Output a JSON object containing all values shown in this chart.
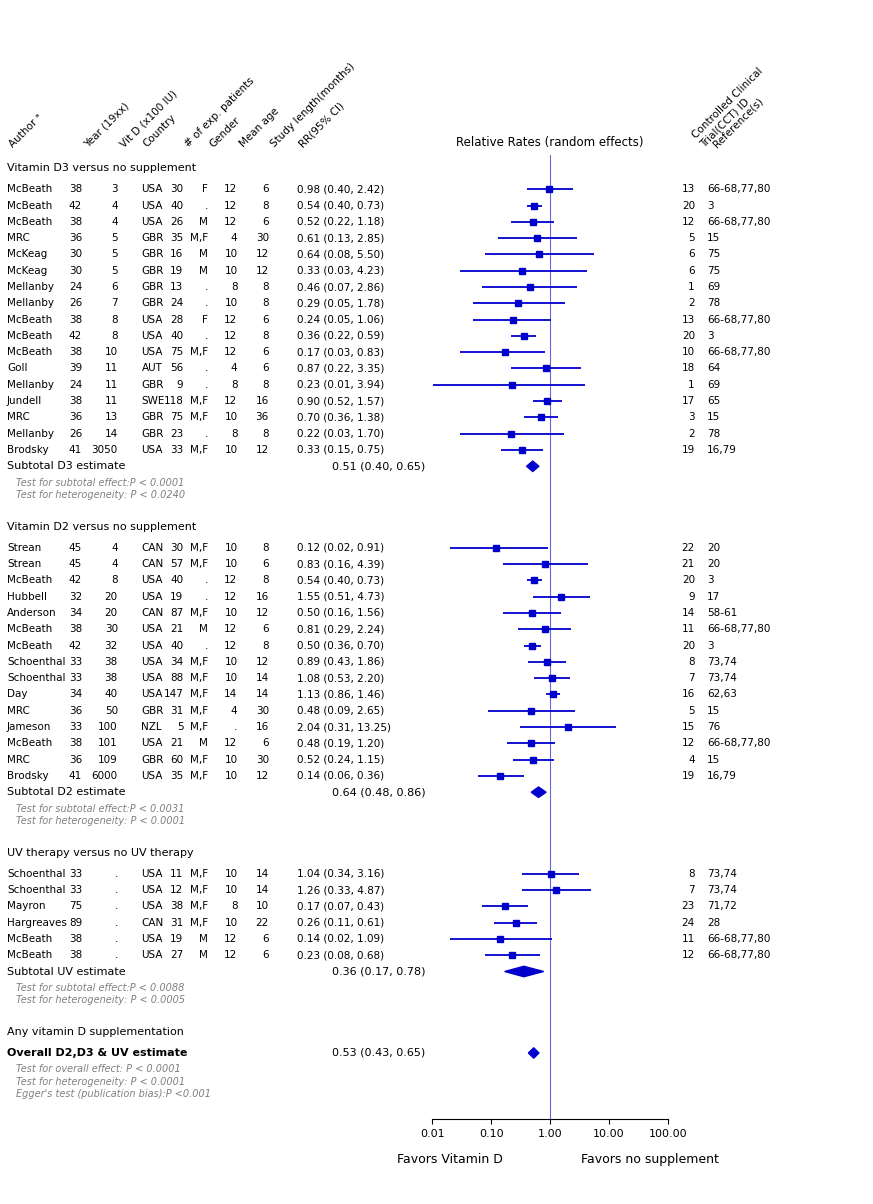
{
  "sections": [
    {
      "title": "Vitamin D3 versus no supplement",
      "studies": [
        {
          "author": "McBeath",
          "year": "38",
          "vitd": "3",
          "country": "USA",
          "n": "30",
          "gender": "F",
          "age": "12",
          "study_len": "6",
          "rr": 0.98,
          "ci_low": 0.4,
          "ci_high": 2.42,
          "rr_text": "0.98 (0.40, 2.42)",
          "cct": "13",
          "ref": "66-68,77,80"
        },
        {
          "author": "McBeath",
          "year": "42",
          "vitd": "4",
          "country": "USA",
          "n": "40",
          "gender": ".",
          "age": "12",
          "study_len": "8",
          "rr": 0.54,
          "ci_low": 0.4,
          "ci_high": 0.73,
          "rr_text": "0.54 (0.40, 0.73)",
          "cct": "20",
          "ref": "3"
        },
        {
          "author": "McBeath",
          "year": "38",
          "vitd": "4",
          "country": "USA",
          "n": "26",
          "gender": "M",
          "age": "12",
          "study_len": "6",
          "rr": 0.52,
          "ci_low": 0.22,
          "ci_high": 1.18,
          "rr_text": "0.52 (0.22, 1.18)",
          "cct": "12",
          "ref": "66-68,77,80"
        },
        {
          "author": "MRC",
          "year": "36",
          "vitd": "5",
          "country": "GBR",
          "n": "35",
          "gender": "M,F",
          "age": "4",
          "study_len": "30",
          "rr": 0.61,
          "ci_low": 0.13,
          "ci_high": 2.85,
          "rr_text": "0.61 (0.13, 2.85)",
          "cct": "5",
          "ref": "15"
        },
        {
          "author": "McKeag",
          "year": "30",
          "vitd": "5",
          "country": "GBR",
          "n": "16",
          "gender": "M",
          "age": "10",
          "study_len": "12",
          "rr": 0.64,
          "ci_low": 0.08,
          "ci_high": 5.5,
          "rr_text": "0.64 (0.08, 5.50)",
          "cct": "6",
          "ref": "75"
        },
        {
          "author": "McKeag",
          "year": "30",
          "vitd": "5",
          "country": "GBR",
          "n": "19",
          "gender": "M",
          "age": "10",
          "study_len": "12",
          "rr": 0.33,
          "ci_low": 0.03,
          "ci_high": 4.23,
          "rr_text": "0.33 (0.03, 4.23)",
          "cct": "6",
          "ref": "75"
        },
        {
          "author": "Mellanby",
          "year": "24",
          "vitd": "6",
          "country": "GBR",
          "n": "13",
          "gender": ".",
          "age": "8",
          "study_len": "8",
          "rr": 0.46,
          "ci_low": 0.07,
          "ci_high": 2.86,
          "rr_text": "0.46 (0.07, 2.86)",
          "cct": "1",
          "ref": "69"
        },
        {
          "author": "Mellanby",
          "year": "26",
          "vitd": "7",
          "country": "GBR",
          "n": "24",
          "gender": ".",
          "age": "10",
          "study_len": "8",
          "rr": 0.29,
          "ci_low": 0.05,
          "ci_high": 1.78,
          "rr_text": "0.29 (0.05, 1.78)",
          "cct": "2",
          "ref": "78"
        },
        {
          "author": "McBeath",
          "year": "38",
          "vitd": "8",
          "country": "USA",
          "n": "28",
          "gender": "F",
          "age": "12",
          "study_len": "6",
          "rr": 0.24,
          "ci_low": 0.05,
          "ci_high": 1.06,
          "rr_text": "0.24 (0.05, 1.06)",
          "cct": "13",
          "ref": "66-68,77,80"
        },
        {
          "author": "McBeath",
          "year": "42",
          "vitd": "8",
          "country": "USA",
          "n": "40",
          "gender": ".",
          "age": "12",
          "study_len": "8",
          "rr": 0.36,
          "ci_low": 0.22,
          "ci_high": 0.59,
          "rr_text": "0.36 (0.22, 0.59)",
          "cct": "20",
          "ref": "3"
        },
        {
          "author": "McBeath",
          "year": "38",
          "vitd": "10",
          "country": "USA",
          "n": "75",
          "gender": "M,F",
          "age": "12",
          "study_len": "6",
          "rr": 0.17,
          "ci_low": 0.03,
          "ci_high": 0.83,
          "rr_text": "0.17 (0.03, 0.83)",
          "cct": "10",
          "ref": "66-68,77,80"
        },
        {
          "author": "Goll",
          "year": "39",
          "vitd": "11",
          "country": "AUT",
          "n": "56",
          "gender": ".",
          "age": "4",
          "study_len": "6",
          "rr": 0.87,
          "ci_low": 0.22,
          "ci_high": 3.35,
          "rr_text": "0.87 (0.22, 3.35)",
          "cct": "18",
          "ref": "64"
        },
        {
          "author": "Mellanby",
          "year": "24",
          "vitd": "11",
          "country": "GBR",
          "n": "9",
          "gender": ".",
          "age": "8",
          "study_len": "8",
          "rr": 0.23,
          "ci_low": 0.01,
          "ci_high": 3.94,
          "rr_text": "0.23 (0.01, 3.94)",
          "cct": "1",
          "ref": "69"
        },
        {
          "author": "Jundell",
          "year": "38",
          "vitd": "11",
          "country": "SWE",
          "n": "118",
          "gender": "M,F",
          "age": "12",
          "study_len": "16",
          "rr": 0.9,
          "ci_low": 0.52,
          "ci_high": 1.57,
          "rr_text": "0.90 (0.52, 1.57)",
          "cct": "17",
          "ref": "65"
        },
        {
          "author": "MRC",
          "year": "36",
          "vitd": "13",
          "country": "GBR",
          "n": "75",
          "gender": "M,F",
          "age": "10",
          "study_len": "36",
          "rr": 0.7,
          "ci_low": 0.36,
          "ci_high": 1.38,
          "rr_text": "0.70 (0.36, 1.38)",
          "cct": "3",
          "ref": "15"
        },
        {
          "author": "Mellanby",
          "year": "26",
          "vitd": "14",
          "country": "GBR",
          "n": "23",
          "gender": ".",
          "age": "8",
          "study_len": "8",
          "rr": 0.22,
          "ci_low": 0.03,
          "ci_high": 1.7,
          "rr_text": "0.22 (0.03, 1.70)",
          "cct": "2",
          "ref": "78"
        },
        {
          "author": "Brodsky",
          "year": "41",
          "vitd": "3050",
          "country": "USA",
          "n": "33",
          "gender": "M,F",
          "age": "10",
          "study_len": "12",
          "rr": 0.33,
          "ci_low": 0.15,
          "ci_high": 0.75,
          "rr_text": "0.33 (0.15, 0.75)",
          "cct": "19",
          "ref": "16,79"
        }
      ],
      "subtotal": {
        "label": "Subtotal D3 estimate",
        "rr": 0.51,
        "ci_low": 0.4,
        "ci_high": 0.65,
        "rr_text": "0.51 (0.40, 0.65)"
      },
      "stats": [
        "Test for subtotal effect:P < 0.0001",
        "Test for heterogeneity: P < 0.0240"
      ]
    },
    {
      "title": "Vitamin D2 versus no supplement",
      "studies": [
        {
          "author": "Strean",
          "year": "45",
          "vitd": "4",
          "country": "CAN",
          "n": "30",
          "gender": "M,F",
          "age": "10",
          "study_len": "8",
          "rr": 0.12,
          "ci_low": 0.02,
          "ci_high": 0.91,
          "rr_text": "0.12 (0.02, 0.91)",
          "cct": "22",
          "ref": "20"
        },
        {
          "author": "Strean",
          "year": "45",
          "vitd": "4",
          "country": "CAN",
          "n": "57",
          "gender": "M,F",
          "age": "10",
          "study_len": "6",
          "rr": 0.83,
          "ci_low": 0.16,
          "ci_high": 4.39,
          "rr_text": "0.83 (0.16, 4.39)",
          "cct": "21",
          "ref": "20"
        },
        {
          "author": "McBeath",
          "year": "42",
          "vitd": "8",
          "country": "USA",
          "n": "40",
          "gender": ".",
          "age": "12",
          "study_len": "8",
          "rr": 0.54,
          "ci_low": 0.4,
          "ci_high": 0.73,
          "rr_text": "0.54 (0.40, 0.73)",
          "cct": "20",
          "ref": "3"
        },
        {
          "author": "Hubbell",
          "year": "32",
          "vitd": "20",
          "country": "USA",
          "n": "19",
          "gender": ".",
          "age": "12",
          "study_len": "16",
          "rr": 1.55,
          "ci_low": 0.51,
          "ci_high": 4.73,
          "rr_text": "1.55 (0.51, 4.73)",
          "cct": "9",
          "ref": "17"
        },
        {
          "author": "Anderson",
          "year": "34",
          "vitd": "20",
          "country": "CAN",
          "n": "87",
          "gender": "M,F",
          "age": "10",
          "study_len": "12",
          "rr": 0.5,
          "ci_low": 0.16,
          "ci_high": 1.56,
          "rr_text": "0.50 (0.16, 1.56)",
          "cct": "14",
          "ref": "58-61"
        },
        {
          "author": "McBeath",
          "year": "38",
          "vitd": "30",
          "country": "USA",
          "n": "21",
          "gender": "M",
          "age": "12",
          "study_len": "6",
          "rr": 0.81,
          "ci_low": 0.29,
          "ci_high": 2.24,
          "rr_text": "0.81 (0.29, 2.24)",
          "cct": "11",
          "ref": "66-68,77,80"
        },
        {
          "author": "McBeath",
          "year": "42",
          "vitd": "32",
          "country": "USA",
          "n": "40",
          "gender": ".",
          "age": "12",
          "study_len": "8",
          "rr": 0.5,
          "ci_low": 0.36,
          "ci_high": 0.7,
          "rr_text": "0.50 (0.36, 0.70)",
          "cct": "20",
          "ref": "3"
        },
        {
          "author": "Schoenthal",
          "year": "33",
          "vitd": "38",
          "country": "USA",
          "n": "34",
          "gender": "M,F",
          "age": "10",
          "study_len": "12",
          "rr": 0.89,
          "ci_low": 0.43,
          "ci_high": 1.86,
          "rr_text": "0.89 (0.43, 1.86)",
          "cct": "8",
          "ref": "73,74"
        },
        {
          "author": "Schoenthal",
          "year": "33",
          "vitd": "38",
          "country": "USA",
          "n": "88",
          "gender": "M,F",
          "age": "10",
          "study_len": "14",
          "rr": 1.08,
          "ci_low": 0.53,
          "ci_high": 2.2,
          "rr_text": "1.08 (0.53, 2.20)",
          "cct": "7",
          "ref": "73,74"
        },
        {
          "author": "Day",
          "year": "34",
          "vitd": "40",
          "country": "USA",
          "n": "147",
          "gender": "M,F",
          "age": "14",
          "study_len": "14",
          "rr": 1.13,
          "ci_low": 0.86,
          "ci_high": 1.46,
          "rr_text": "1.13 (0.86, 1.46)",
          "cct": "16",
          "ref": "62,63"
        },
        {
          "author": "MRC",
          "year": "36",
          "vitd": "50",
          "country": "GBR",
          "n": "31",
          "gender": "M,F",
          "age": "4",
          "study_len": "30",
          "rr": 0.48,
          "ci_low": 0.09,
          "ci_high": 2.65,
          "rr_text": "0.48 (0.09, 2.65)",
          "cct": "5",
          "ref": "15"
        },
        {
          "author": "Jameson",
          "year": "33",
          "vitd": "100",
          "country": "NZL",
          "n": "5",
          "gender": "M,F",
          "age": ".",
          "study_len": "16",
          "rr": 2.04,
          "ci_low": 0.31,
          "ci_high": 13.25,
          "rr_text": "2.04 (0.31, 13.25)",
          "cct": "15",
          "ref": "76"
        },
        {
          "author": "McBeath",
          "year": "38",
          "vitd": "101",
          "country": "USA",
          "n": "21",
          "gender": "M",
          "age": "12",
          "study_len": "6",
          "rr": 0.48,
          "ci_low": 0.19,
          "ci_high": 1.2,
          "rr_text": "0.48 (0.19, 1.20)",
          "cct": "12",
          "ref": "66-68,77,80"
        },
        {
          "author": "MRC",
          "year": "36",
          "vitd": "109",
          "country": "GBR",
          "n": "60",
          "gender": "M,F",
          "age": "10",
          "study_len": "30",
          "rr": 0.52,
          "ci_low": 0.24,
          "ci_high": 1.15,
          "rr_text": "0.52 (0.24, 1.15)",
          "cct": "4",
          "ref": "15"
        },
        {
          "author": "Brodsky",
          "year": "41",
          "vitd": "6000",
          "country": "USA",
          "n": "35",
          "gender": "M,F",
          "age": "10",
          "study_len": "12",
          "rr": 0.14,
          "ci_low": 0.06,
          "ci_high": 0.36,
          "rr_text": "0.14 (0.06, 0.36)",
          "cct": "19",
          "ref": "16,79"
        }
      ],
      "subtotal": {
        "label": "Subtotal D2 estimate",
        "rr": 0.64,
        "ci_low": 0.48,
        "ci_high": 0.86,
        "rr_text": "0.64 (0.48, 0.86)"
      },
      "stats": [
        "Test for subtotal effect:P < 0.0031",
        "Test for heterogeneity: P < 0.0001"
      ]
    },
    {
      "title": "UV therapy versus no UV therapy",
      "studies": [
        {
          "author": "Schoenthal",
          "year": "33",
          "vitd": ".",
          "country": "USA",
          "n": "11",
          "gender": "M,F",
          "age": "10",
          "study_len": "14",
          "rr": 1.04,
          "ci_low": 0.34,
          "ci_high": 3.16,
          "rr_text": "1.04 (0.34, 3.16)",
          "cct": "8",
          "ref": "73,74"
        },
        {
          "author": "Schoenthal",
          "year": "33",
          "vitd": ".",
          "country": "USA",
          "n": "12",
          "gender": "M,F",
          "age": "10",
          "study_len": "14",
          "rr": 1.26,
          "ci_low": 0.33,
          "ci_high": 4.87,
          "rr_text": "1.26 (0.33, 4.87)",
          "cct": "7",
          "ref": "73,74"
        },
        {
          "author": "Mayron",
          "year": "75",
          "vitd": ".",
          "country": "USA",
          "n": "38",
          "gender": "M,F",
          "age": "8",
          "study_len": "10",
          "rr": 0.17,
          "ci_low": 0.07,
          "ci_high": 0.43,
          "rr_text": "0.17 (0.07, 0.43)",
          "cct": "23",
          "ref": "71,72"
        },
        {
          "author": "Hargreaves",
          "year": "89",
          "vitd": ".",
          "country": "CAN",
          "n": "31",
          "gender": "M,F",
          "age": "10",
          "study_len": "22",
          "rr": 0.26,
          "ci_low": 0.11,
          "ci_high": 0.61,
          "rr_text": "0.26 (0.11, 0.61)",
          "cct": "24",
          "ref": "28"
        },
        {
          "author": "McBeath",
          "year": "38",
          "vitd": ".",
          "country": "USA",
          "n": "19",
          "gender": "M",
          "age": "12",
          "study_len": "6",
          "rr": 0.14,
          "ci_low": 0.02,
          "ci_high": 1.09,
          "rr_text": "0.14 (0.02, 1.09)",
          "cct": "11",
          "ref": "66-68,77,80"
        },
        {
          "author": "McBeath",
          "year": "38",
          "vitd": ".",
          "country": "USA",
          "n": "27",
          "gender": "M",
          "age": "12",
          "study_len": "6",
          "rr": 0.23,
          "ci_low": 0.08,
          "ci_high": 0.68,
          "rr_text": "0.23 (0.08, 0.68)",
          "cct": "12",
          "ref": "66-68,77,80"
        }
      ],
      "subtotal": {
        "label": "Subtotal UV estimate",
        "rr": 0.36,
        "ci_low": 0.17,
        "ci_high": 0.78,
        "rr_text": "0.36 (0.17, 0.78)"
      },
      "stats": [
        "Test for subtotal effect:P < 0.0088",
        "Test for heterogeneity: P < 0.0005"
      ]
    }
  ],
  "overall": {
    "section_title": "Any vitamin D supplementation",
    "label": "Overall D2,D3 & UV estimate",
    "rr": 0.53,
    "ci_low": 0.43,
    "ci_high": 0.65,
    "rr_text": "0.53 (0.43, 0.65)",
    "stats": [
      "Test for overall effect: P < 0.0001",
      "Test for heterogeneity: P < 0.0001",
      "Egger's test (publication bias):P <0.001"
    ]
  },
  "col_headers": [
    "Author ᵃ",
    "Year (19xx)",
    "Vit D (x100 IU)",
    "Country",
    "# of exp. patients",
    "Gender",
    "Mean age",
    "Study length(months)",
    "RR(95% CI)"
  ],
  "right_headers": [
    "Controlled Clinical\nTrial(CCT) ID",
    "Reference(s)"
  ],
  "plot_title": "Relative Rates (random effects)",
  "x_label_left": "Favors Vitamin D",
  "x_label_right": "Favors no supplement",
  "main_color": "#0000CD",
  "stats_color": "#808080",
  "x_ticks": [
    0.01,
    0.1,
    1.0,
    10.0,
    100.0
  ],
  "x_tick_labels": [
    "0.01",
    "0.10",
    "1.00",
    "10.00",
    "100.00"
  ]
}
